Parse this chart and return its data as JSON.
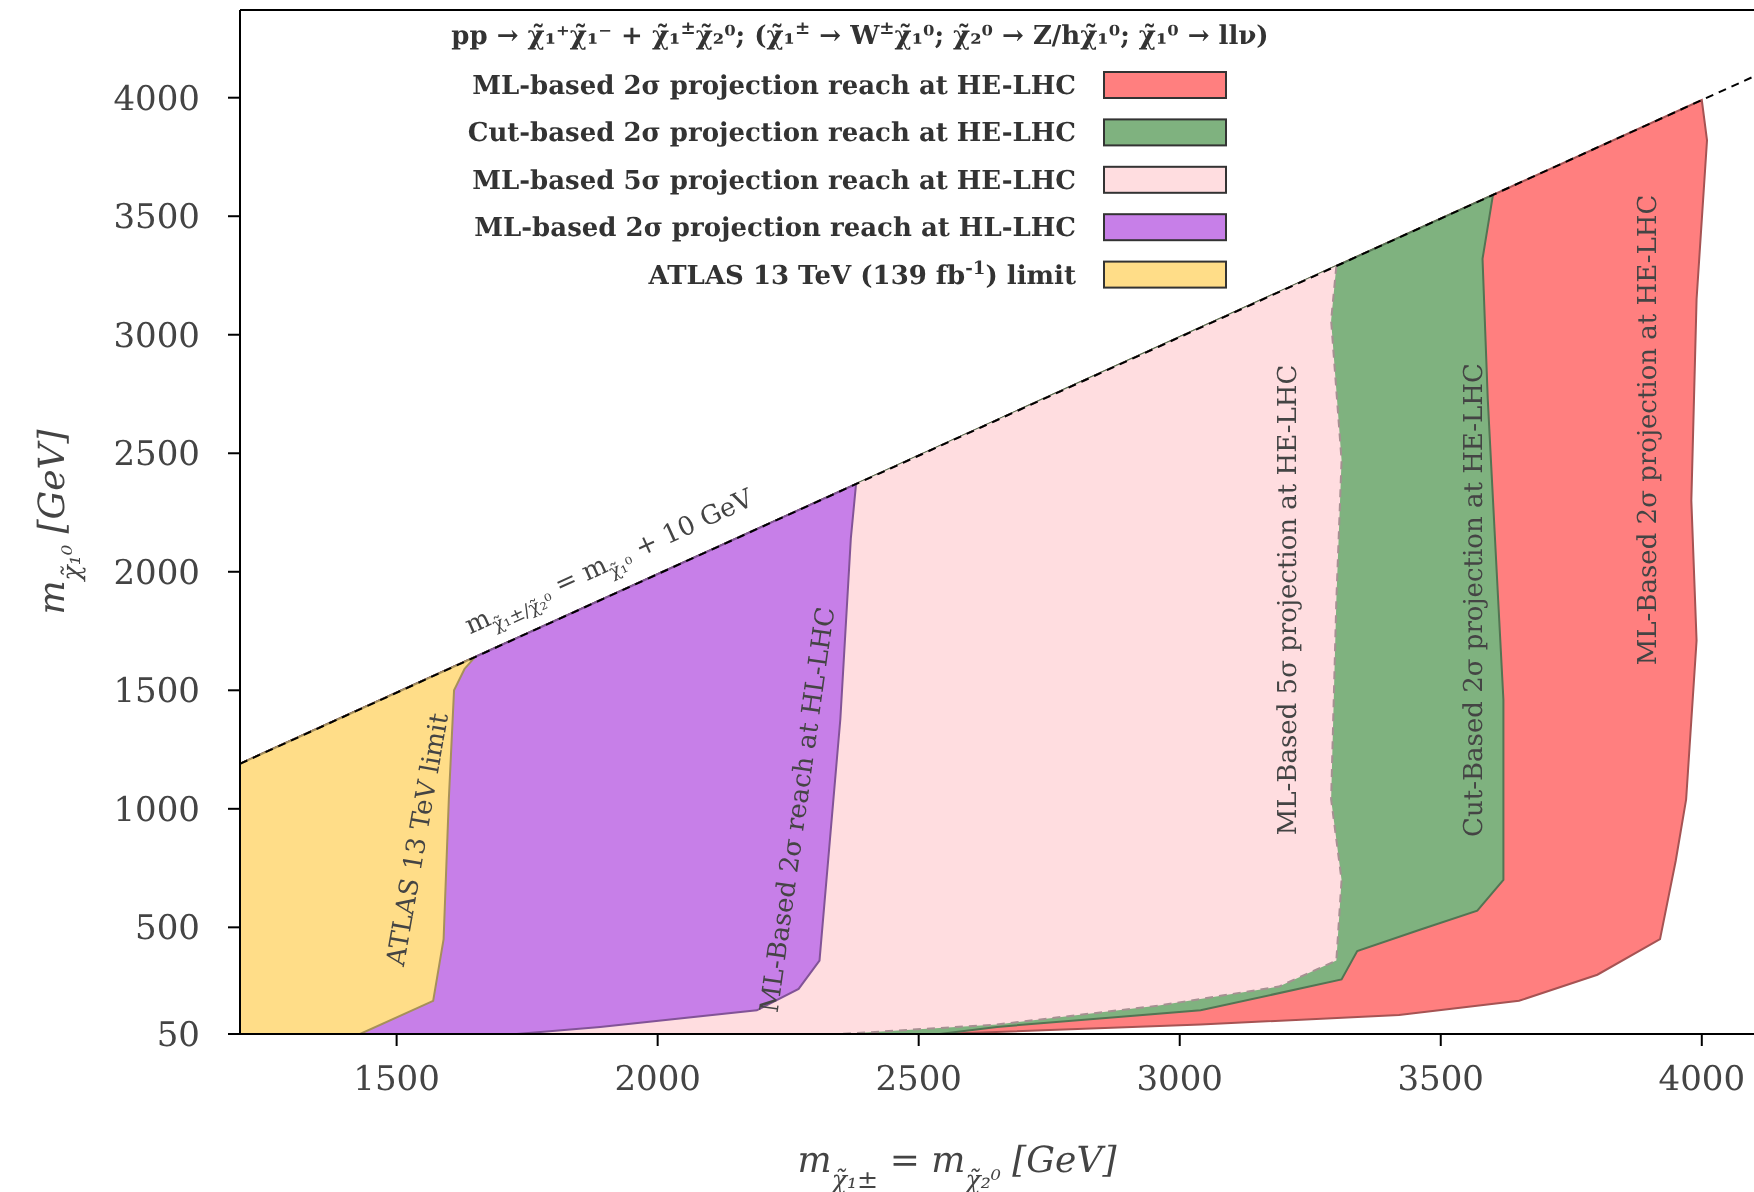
{
  "chart_data": {
    "type": "area",
    "legend_title": "pp → χ̃₁⁺χ̃₁⁻ + χ̃₁$^{±}$χ̃₂⁰; (χ̃₁$^{±}$ → W$^{±}$χ̃₁⁰; χ̃₂⁰ → Z/hχ̃₁⁰; χ̃₁⁰ → llν)",
    "xlabel": "m$_{χ̃₁±}$ = m$_{χ̃₂⁰}$ [GeV]",
    "ylabel": "m$_{χ̃₁⁰}$ [GeV]",
    "xlim": [
      1200,
      4100
    ],
    "ylim": [
      50,
      4370
    ],
    "xticks": [
      1500,
      2000,
      2500,
      3000,
      3500,
      4000
    ],
    "yticks": [
      50,
      500,
      1000,
      1500,
      2000,
      2500,
      3000,
      3500,
      4000
    ],
    "grid": false,
    "legend": "top",
    "series": [
      {
        "name": "ML-based 2σ projection reach at HE-LHC",
        "color": "#ff7f7f",
        "x": [
          1200,
          4000,
          4010,
          3990,
          3980,
          3990,
          3970,
          3950,
          3920,
          3800,
          3650,
          3420,
          3040,
          2540,
          1200
        ],
        "values": [
          1190,
          3990,
          3820,
          3150,
          2300,
          1710,
          1040,
          780,
          450,
          300,
          190,
          130,
          90,
          50,
          50
        ]
      },
      {
        "name": "Cut-based 2σ projection reach at HE-LHC",
        "color": "#7fb27f",
        "x": [
          1200,
          3600,
          3580,
          3590,
          3610,
          3620,
          3620,
          3570,
          3460,
          3340,
          3310,
          3040,
          2650,
          2540,
          1200
        ],
        "values": [
          1190,
          3590,
          3320,
          2730,
          1880,
          1460,
          700,
          570,
          490,
          400,
          280,
          150,
          80,
          50,
          50
        ]
      },
      {
        "name": "ML-based 5σ projection reach at HE-LHC",
        "color": "#ffdde0",
        "line_style": "dashed",
        "x": [
          1200,
          3300,
          3290,
          3310,
          3300,
          3290,
          3310,
          3300,
          3190,
          2960,
          2650,
          2350,
          1200
        ],
        "values": [
          1190,
          3290,
          3060,
          2470,
          1880,
          1040,
          700,
          360,
          250,
          170,
          90,
          50,
          50
        ]
      },
      {
        "name": "ML-based 2σ projection reach at HL-LHC",
        "color": "#c77fe8",
        "x": [
          1200,
          2380,
          2370,
          2350,
          2330,
          2310,
          2270,
          2190,
          1890,
          1730,
          1200
        ],
        "values": [
          1190,
          2370,
          2140,
          1380,
          870,
          360,
          240,
          150,
          80,
          50,
          50
        ]
      },
      {
        "name": "ATLAS 13 TeV (139 fb$^{-1}$) limit",
        "color": "#ffdd88",
        "x": [
          1200,
          1650,
          1630,
          1610,
          1600,
          1590,
          1570,
          1430,
          1200
        ],
        "values": [
          1190,
          1640,
          1590,
          1500,
          1040,
          450,
          190,
          50,
          50
        ]
      },
      {
        "type": "line",
        "color": "#000000",
        "line_style": "dashed",
        "x": [
          1200,
          4100
        ],
        "values": [
          1190,
          4090
        ]
      }
    ],
    "annotations": [
      "m$_{χ̃₁±/χ̃₂⁰}$ = m$_{χ̃₁⁰}$ + 10 GeV",
      "ATLAS 13 TeV limit",
      "ML-Based 2σ reach at HL-LHC",
      "ML-Based 5σ projection at HE-LHC",
      "Cut-Based 2σ projection at HE-LHC",
      "ML-Based 2σ projection at HE-LHC"
    ]
  }
}
